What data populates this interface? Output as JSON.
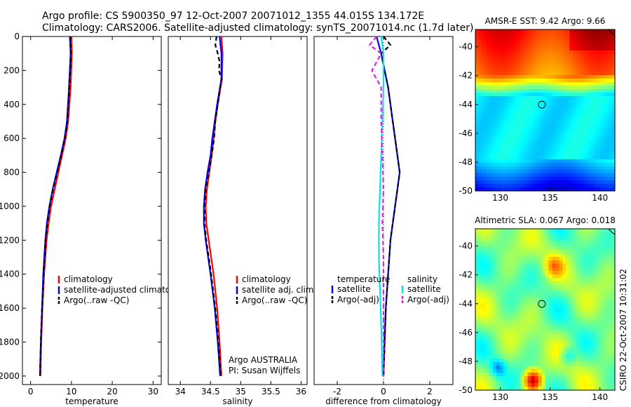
{
  "header": {
    "line1": "Argo profile: CS 5900350_97 12-Oct-2007 20071012_1355 44.015S 134.172E",
    "line2": "Climatology: CARS2006. Satellite-adjusted climatology: synTS_20071014.nc (1.7d later)"
  },
  "credit": {
    "text": "CSIRO 22-Oct-2007 10:31:02"
  },
  "colors": {
    "red": "#ff0000",
    "blue": "#0000ff",
    "black": "#000000",
    "cyan": "#00e5ee",
    "magenta": "#e020e0"
  },
  "chart_data": [
    {
      "type": "line",
      "xlabel": "temperature",
      "xlim": [
        -2,
        32
      ],
      "ylim": [
        0,
        2050
      ],
      "xticks": [
        "0",
        "10",
        "20",
        "30"
      ],
      "xtick_values": [
        0,
        10,
        20,
        30
      ],
      "yticks": [
        "0",
        "200",
        "400",
        "600",
        "800",
        "1000",
        "1200",
        "1400",
        "1600",
        "1800",
        "2000"
      ],
      "ytick_values": [
        0,
        200,
        400,
        600,
        800,
        1000,
        1200,
        1400,
        1600,
        1800,
        2000
      ],
      "legend": [
        "climatology",
        "satellite-adjusted climatology",
        "Argo(..raw -QC)"
      ],
      "series": [
        {
          "name": "climatology",
          "color": "red",
          "dash": false,
          "depth": [
            0,
            100,
            300,
            500,
            600,
            700,
            800,
            900,
            1000,
            1100,
            1200,
            1400,
            1600,
            1800,
            2000
          ],
          "values": [
            10.0,
            10.1,
            9.8,
            9.2,
            8.6,
            7.7,
            6.8,
            5.9,
            5.0,
            4.4,
            3.9,
            3.3,
            2.9,
            2.6,
            2.4
          ]
        },
        {
          "name": "satellite-adjusted climatology",
          "color": "blue",
          "dash": false,
          "depth": [
            0,
            100,
            300,
            500,
            600,
            700,
            800,
            900,
            1000,
            1100,
            1200,
            1400,
            1600,
            1800,
            2000
          ],
          "values": [
            9.6,
            9.8,
            9.4,
            8.9,
            8.3,
            7.4,
            6.4,
            5.4,
            4.6,
            4.0,
            3.6,
            3.1,
            2.8,
            2.5,
            2.3
          ]
        },
        {
          "name": "Argo(..raw -QC)",
          "color": "black",
          "dash": true,
          "depth": [
            0,
            100,
            300,
            500,
            600,
            700,
            800,
            900,
            1000,
            1100,
            1200,
            1400,
            1600,
            1800,
            2000
          ],
          "values": [
            9.7,
            9.9,
            9.5,
            9.0,
            8.4,
            7.5,
            6.5,
            5.5,
            4.7,
            4.1,
            3.7,
            3.2,
            2.8,
            2.5,
            2.3
          ]
        }
      ]
    },
    {
      "type": "line",
      "xlabel": "salinity",
      "xlim": [
        33.8,
        36.1
      ],
      "ylim": [
        0,
        2050
      ],
      "xticks": [
        "34",
        "34.5",
        "35",
        "35.5",
        "36"
      ],
      "xtick_values": [
        34,
        34.5,
        35,
        35.5,
        36
      ],
      "legend": [
        "climatology",
        "satellite adj. clim.",
        "Argo(..raw -QC)"
      ],
      "annotation": [
        "Argo AUSTRALIA",
        "PI: Susan Wijffels"
      ],
      "series": [
        {
          "name": "climatology",
          "color": "red",
          "dash": false,
          "depth": [
            0,
            100,
            250,
            400,
            500,
            600,
            700,
            800,
            900,
            1000,
            1100,
            1200,
            1400,
            1600,
            1800,
            2000
          ],
          "values": [
            34.68,
            34.7,
            34.69,
            34.62,
            34.58,
            34.55,
            34.52,
            34.48,
            34.44,
            34.42,
            34.43,
            34.47,
            34.55,
            34.61,
            34.65,
            34.68
          ]
        },
        {
          "name": "satellite adj. clim.",
          "color": "blue",
          "dash": false,
          "depth": [
            0,
            100,
            250,
            400,
            500,
            600,
            700,
            800,
            900,
            1000,
            1100,
            1200,
            1400,
            1600,
            1800,
            2000
          ],
          "values": [
            34.65,
            34.68,
            34.68,
            34.61,
            34.57,
            34.53,
            34.5,
            34.45,
            34.41,
            34.39,
            34.39,
            34.42,
            34.5,
            34.57,
            34.62,
            34.66
          ]
        },
        {
          "name": "Argo(..raw -QC)",
          "color": "black",
          "dash": true,
          "depth": [
            0,
            50,
            100,
            150,
            200,
            250,
            400,
            500,
            600,
            700,
            800,
            900,
            1000,
            1100,
            1200,
            1400,
            1600,
            1800,
            2000
          ],
          "values": [
            34.6,
            34.58,
            34.62,
            34.65,
            34.64,
            34.68,
            34.62,
            34.58,
            34.56,
            34.52,
            34.47,
            34.42,
            34.4,
            34.4,
            34.43,
            34.51,
            34.58,
            34.63,
            34.67
          ]
        }
      ]
    },
    {
      "type": "line",
      "xlabel": "difference from climatology",
      "xlim": [
        -3,
        3
      ],
      "ylim": [
        0,
        2050
      ],
      "xticks": [
        "-2",
        "0",
        "2"
      ],
      "xtick_values": [
        -2,
        0,
        2
      ],
      "legend_headers": [
        "temperature",
        "salinity"
      ],
      "legend": [
        "satellite",
        "Argo(-adj)",
        "satellite",
        "Argo(-adj)"
      ],
      "series": [
        {
          "name": "temperature satellite",
          "color": "blue",
          "dash": false,
          "depth": [
            0,
            100,
            300,
            500,
            600,
            700,
            800,
            900,
            1000,
            1100,
            1200,
            1400,
            1600,
            1800,
            2000
          ],
          "values": [
            -0.3,
            -0.1,
            0.2,
            0.4,
            0.5,
            0.6,
            0.7,
            0.6,
            0.5,
            0.4,
            0.3,
            0.2,
            0.1,
            0.05,
            0.0
          ]
        },
        {
          "name": "temperature Argo(-adj)",
          "color": "black",
          "dash": true,
          "depth": [
            0,
            50,
            100,
            300,
            500,
            600,
            700,
            800,
            900,
            1000,
            1100,
            1200,
            1400,
            1600,
            1800,
            2000
          ],
          "values": [
            0.0,
            0.3,
            -0.1,
            0.2,
            0.4,
            0.5,
            0.6,
            0.7,
            0.6,
            0.5,
            0.4,
            0.3,
            0.2,
            0.1,
            0.05,
            0.0
          ]
        },
        {
          "name": "salinity satellite",
          "color": "cyan",
          "dash": false,
          "depth": [
            0,
            100,
            300,
            500,
            700,
            900,
            1100,
            1300,
            1500,
            1700,
            2000
          ],
          "values": [
            -0.1,
            0.0,
            0.0,
            -0.05,
            -0.1,
            -0.15,
            -0.2,
            -0.2,
            -0.15,
            -0.1,
            -0.05
          ]
        },
        {
          "name": "salinity Argo(-adj)",
          "color": "magenta",
          "dash": true,
          "depth": [
            0,
            50,
            100,
            200,
            300,
            500,
            700,
            900,
            1100,
            1300,
            1500,
            1700,
            2000
          ],
          "values": [
            -0.3,
            -0.6,
            -0.1,
            -0.5,
            -0.1,
            -0.1,
            -0.05,
            0.0,
            -0.05,
            0.0,
            0.0,
            0.0,
            0.0
          ]
        }
      ]
    },
    {
      "type": "heatmap",
      "title": "AMSR-E SST: 9.42 Argo: 9.66",
      "xlim": [
        127.5,
        141.5
      ],
      "ylim": [
        -50,
        -38.8
      ],
      "xticks": [
        "130",
        "135",
        "140"
      ],
      "xtick_values": [
        130,
        135,
        140
      ],
      "yticks": [
        "-40",
        "-42",
        "-44",
        "-46",
        "-48",
        "-50"
      ],
      "ytick_values": [
        -40,
        -42,
        -44,
        -46,
        -48,
        -50
      ],
      "marker": {
        "lon": 134.172,
        "lat": -44.015
      },
      "field": "sst"
    },
    {
      "type": "heatmap",
      "title": "Altimetric SLA: 0.067 Argo: 0.018",
      "xlim": [
        127.5,
        141.5
      ],
      "ylim": [
        -50,
        -38.8
      ],
      "xticks": [
        "130",
        "135",
        "140"
      ],
      "xtick_values": [
        130,
        135,
        140
      ],
      "yticks": [
        "-40",
        "-42",
        "-44",
        "-46",
        "-48",
        "-50"
      ],
      "ytick_values": [
        -40,
        -42,
        -44,
        -46,
        -48,
        -50
      ],
      "marker": {
        "lon": 134.172,
        "lat": -44.015
      },
      "field": "sla"
    }
  ]
}
